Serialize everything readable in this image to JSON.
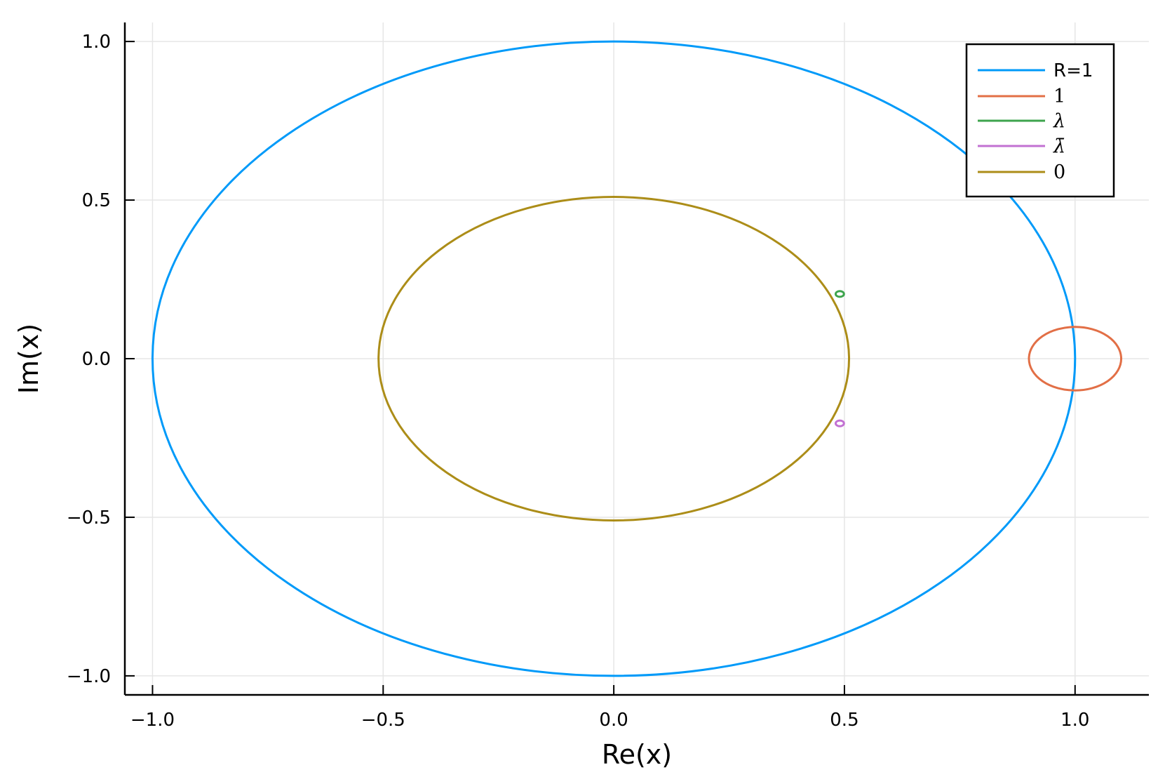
{
  "chart_data": {
    "type": "line",
    "xlabel": "Re(x)",
    "ylabel": "Im(x)",
    "xlim": [
      -1.06,
      1.16
    ],
    "ylim": [
      -1.06,
      1.06
    ],
    "x_ticks": [
      -1.0,
      -0.5,
      0.0,
      0.5,
      1.0
    ],
    "y_ticks": [
      -1.0,
      -0.5,
      0.0,
      0.5,
      1.0
    ],
    "x_tick_labels": [
      "−1.0",
      "−0.5",
      "0.0",
      "0.5",
      "1.0"
    ],
    "y_tick_labels": [
      "−1.0",
      "−0.5",
      "0.0",
      "0.5",
      "1.0"
    ],
    "grid": true,
    "legend_position": "top-right",
    "series": [
      {
        "name": "R=1",
        "shape": "circle",
        "center": [
          0.0,
          0.0
        ],
        "radius": 1.0,
        "color": "#009af9"
      },
      {
        "name": "1",
        "shape": "circle",
        "center": [
          1.0,
          0.0
        ],
        "radius": 0.1,
        "color": "#e26f46"
      },
      {
        "name": "λ",
        "shape": "circle",
        "center": [
          0.49,
          0.204
        ],
        "radius": 0.009,
        "color": "#3da44d"
      },
      {
        "name": "λ̄",
        "shape": "circle",
        "center": [
          0.49,
          -0.204
        ],
        "radius": 0.009,
        "color": "#c271d2"
      },
      {
        "name": "0",
        "shape": "circle",
        "center": [
          0.0,
          0.0
        ],
        "radius": 0.51,
        "color": "#ac8d18"
      }
    ]
  }
}
